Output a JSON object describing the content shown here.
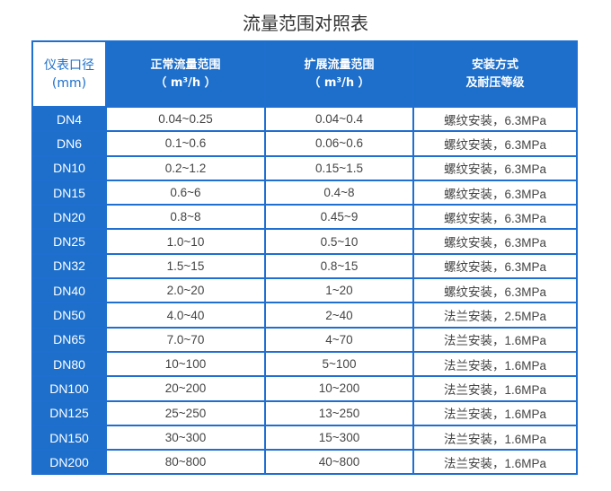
{
  "title": "流量范围对照表",
  "colors": {
    "header_bg": "#1d6fcb",
    "border": "#1f6fd0"
  },
  "headers": [
    [
      "仪表口径",
      "(mm)"
    ],
    [
      "正常流量范围",
      "（ m³/h ）"
    ],
    [
      "扩展流量范围",
      "（ m³/h ）"
    ],
    [
      "安装方式",
      "及耐压等级"
    ]
  ],
  "rows": [
    [
      "DN4",
      "0.04~0.25",
      "0.04~0.4",
      "螺纹安装，6.3MPa"
    ],
    [
      "DN6",
      "0.1~0.6",
      "0.06~0.6",
      "螺纹安装，6.3MPa"
    ],
    [
      "DN10",
      "0.2~1.2",
      "0.15~1.5",
      "螺纹安装，6.3MPa"
    ],
    [
      "DN15",
      "0.6~6",
      "0.4~8",
      "螺纹安装，6.3MPa"
    ],
    [
      "DN20",
      "0.8~8",
      "0.45~9",
      "螺纹安装，6.3MPa"
    ],
    [
      "DN25",
      "1.0~10",
      "0.5~10",
      "螺纹安装，6.3MPa"
    ],
    [
      "DN32",
      "1.5~15",
      "0.8~15",
      "螺纹安装，6.3MPa"
    ],
    [
      "DN40",
      "2.0~20",
      "1~20",
      "螺纹安装，6.3MPa"
    ],
    [
      "DN50",
      "4.0~40",
      "2~40",
      "法兰安装，2.5MPa"
    ],
    [
      "DN65",
      "7.0~70",
      "4~70",
      "法兰安装，1.6MPa"
    ],
    [
      "DN80",
      "10~100",
      "5~100",
      "法兰安装，1.6MPa"
    ],
    [
      "DN100",
      "20~200",
      "10~200",
      "法兰安装，1.6MPa"
    ],
    [
      "DN125",
      "25~250",
      "13~250",
      "法兰安装，1.6MPa"
    ],
    [
      "DN150",
      "30~300",
      "15~300",
      "法兰安装，1.6MPa"
    ],
    [
      "DN200",
      "80~800",
      "40~800",
      "法兰安装，1.6MPa"
    ]
  ]
}
